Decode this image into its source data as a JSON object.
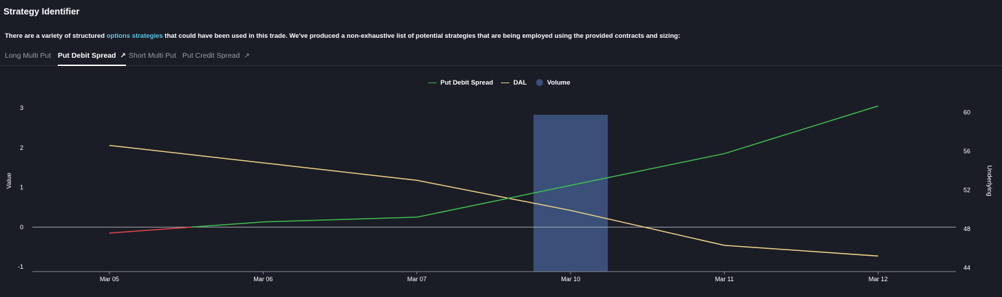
{
  "header": {
    "title": "Strategy Identifier",
    "desc_before": "There are a variety of structured ",
    "desc_link": "options strategies",
    "desc_after": " that could have been used in this trade. We've produced a non-exhaustive list of potential strategies that are being employed using the provided contracts and sizing:"
  },
  "tabs": [
    {
      "label": "Long Multi Put",
      "arrow": ""
    },
    {
      "label": "Put Debit Spread",
      "arrow": "↗"
    },
    {
      "label": "Short Multi Put",
      "arrow": ""
    },
    {
      "label": "Put Credit Spread",
      "arrow": "↗"
    }
  ],
  "active_tab": 1,
  "colors": {
    "green": "#3fbf4f",
    "red": "#e5484d",
    "yellow": "#f2d48a",
    "volume": "#3a5078"
  },
  "chart_data": {
    "type": "line",
    "title": "",
    "categories": [
      "Mar 05",
      "Mar 06",
      "Mar 07",
      "Mar 10",
      "Mar 11",
      "Mar 12"
    ],
    "series": [
      {
        "name": "Put Debit Spread",
        "axis": "left",
        "values": [
          -0.15,
          0.13,
          0.25,
          1.05,
          1.85,
          3.05
        ]
      },
      {
        "name": "DAL",
        "axis": "right",
        "values": [
          56.6,
          54.8,
          53.0,
          49.9,
          46.3,
          45.2
        ]
      },
      {
        "name": "Volume",
        "type": "bar",
        "values": [
          0,
          0,
          0,
          1,
          0,
          0
        ]
      }
    ],
    "ylabel": "Value",
    "y2label": "Underlying",
    "ylim": [
      -1.12,
      3.45
    ],
    "y2lim": [
      43.6,
      62.3
    ],
    "yticks": [
      -1,
      0,
      1,
      2,
      3
    ],
    "y2ticks": [
      44,
      48,
      52,
      56,
      60
    ],
    "legend": "top-center",
    "grid": false
  }
}
